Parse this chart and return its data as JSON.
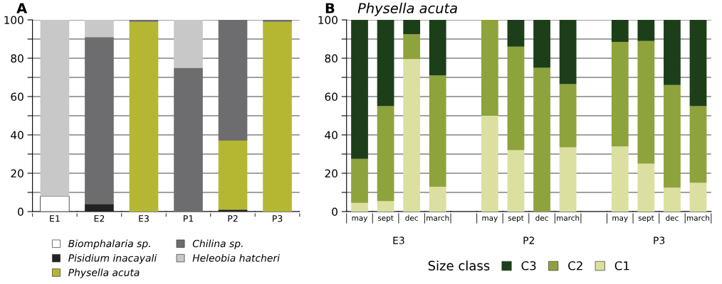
{
  "chart_data": [
    {
      "type": "bar",
      "title": "A",
      "stacked": true,
      "categories": [
        "E1",
        "E2",
        "E3",
        "P1",
        "P2",
        "P3"
      ],
      "series": [
        {
          "name": "Biomphalaria sp.",
          "color": "#ffffff",
          "values": [
            8,
            0,
            0,
            0,
            0,
            0
          ]
        },
        {
          "name": "Pisidium inacayali",
          "color": "#222222",
          "values": [
            0,
            4,
            0,
            0,
            1,
            0
          ]
        },
        {
          "name": "Physella acuta",
          "color": "#b5b732",
          "values": [
            0,
            0,
            99,
            0,
            36,
            99
          ]
        },
        {
          "name": "Chilina sp.",
          "color": "#6d6d6f",
          "values": [
            0,
            87,
            1,
            75,
            63,
            1
          ]
        },
        {
          "name": "Heleobia hatcheri",
          "color": "#c8c8c8",
          "values": [
            92,
            9,
            0,
            25,
            0,
            0
          ]
        }
      ],
      "ylim": [
        0,
        100
      ],
      "yticks": [
        0,
        {
          "value": 10,
          "label": null
        },
        20,
        {
          "value": 30,
          "label": null
        },
        40,
        {
          "value": 50,
          "label": null
        },
        60,
        {
          "value": 70,
          "label": null
        },
        80,
        {
          "value": 90,
          "label": null
        },
        100
      ],
      "grid": "y",
      "legend": "bottom"
    },
    {
      "type": "bar",
      "title": "B",
      "subtitle": "Physella acuta",
      "stacked": true,
      "legend_title": "Size class",
      "categories": [
        "may",
        "sept",
        "dec",
        "march",
        null,
        "may",
        "sept",
        "dec",
        "march",
        null,
        "may",
        "sept",
        "dec",
        "march"
      ],
      "series": [
        {
          "name": "C1",
          "color": "#dbe0a0",
          "values": [
            4.5,
            5.5,
            79.5,
            13,
            null,
            50,
            32,
            0,
            33.5,
            null,
            34,
            25,
            12.5,
            15
          ]
        },
        {
          "name": "C2",
          "color": "#8ea33b",
          "values": [
            23,
            49.5,
            13,
            58,
            null,
            50,
            54,
            75,
            33,
            null,
            54.5,
            64,
            53.5,
            40
          ]
        },
        {
          "name": "C3",
          "color": "#1c3f1a",
          "values": [
            72.5,
            45,
            7.5,
            29,
            null,
            0,
            14,
            25,
            33.5,
            null,
            11.5,
            11,
            34,
            45
          ]
        }
      ],
      "annotations": [
        "E3",
        "P2",
        "P3"
      ],
      "ylim": [
        0,
        100
      ],
      "yticks": [
        0,
        {
          "value": 10,
          "label": null
        },
        20,
        {
          "value": 30,
          "label": null
        },
        40,
        {
          "value": 50,
          "label": null
        },
        60,
        {
          "value": 70,
          "label": null
        },
        80,
        {
          "value": 90,
          "label": null
        },
        100
      ],
      "grid": "y",
      "legend": "bottom"
    }
  ]
}
